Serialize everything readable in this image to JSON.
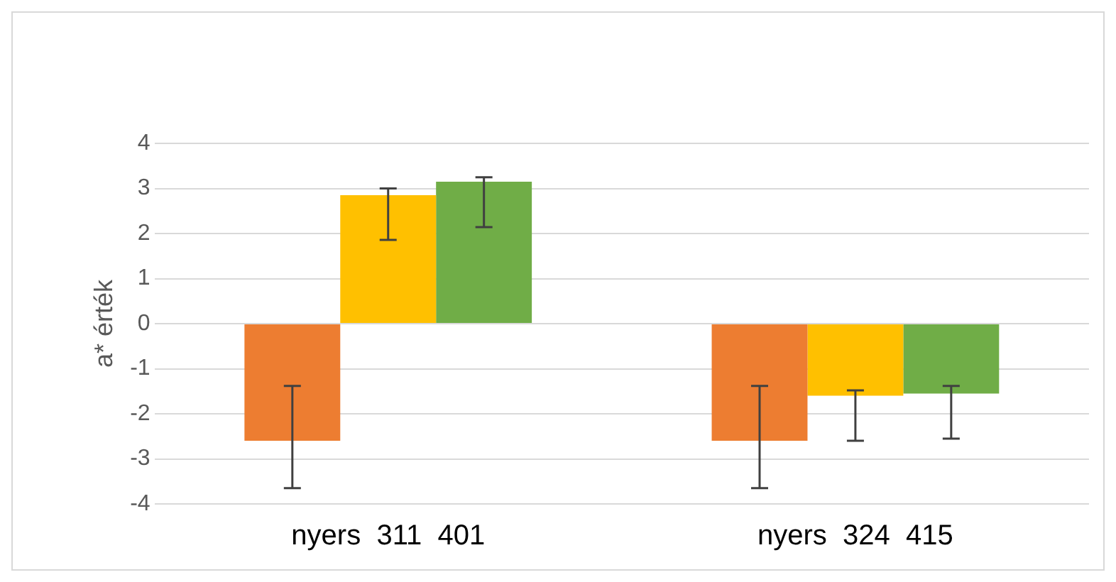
{
  "chart_data": {
    "type": "bar",
    "ylabel": "a* érték",
    "categories": [
      "nyers  311  401",
      "nyers  324  415"
    ],
    "series": [
      {
        "color": "#ed7d31",
        "values": [
          -2.6,
          -2.6
        ],
        "errors": [
          [
            -3.65,
            -1.38
          ],
          [
            -3.65,
            -1.38
          ]
        ]
      },
      {
        "color": "#ffc000",
        "values": [
          2.85,
          -1.6
        ],
        "errors": [
          [
            1.86,
            3.0
          ],
          [
            -2.6,
            -1.48
          ]
        ]
      },
      {
        "color": "#70ad47",
        "values": [
          3.15,
          -1.55
        ],
        "errors": [
          [
            2.14,
            3.25
          ],
          [
            -2.55,
            -1.38
          ]
        ]
      }
    ],
    "ylim": [
      -4,
      4
    ],
    "yticks": [
      -4,
      -3,
      -2,
      -1,
      0,
      1,
      2,
      3,
      4
    ],
    "grid": "y",
    "legend": false
  }
}
